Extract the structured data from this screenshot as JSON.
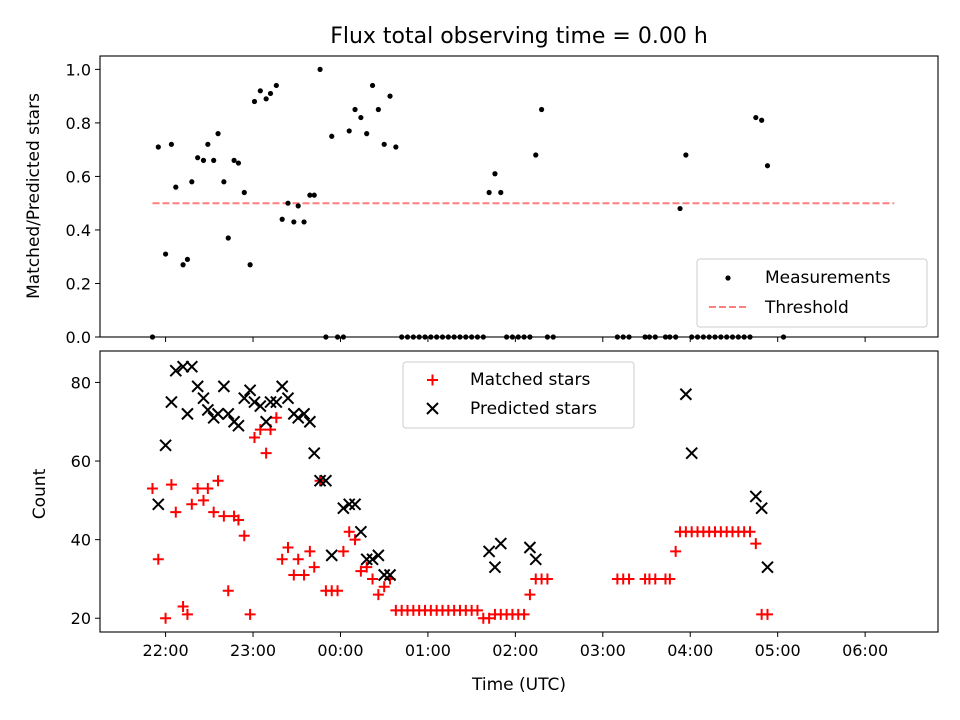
{
  "chart_data": [
    {
      "type": "scatter",
      "title": "Flux total observing time = 0.00 h",
      "xlabel": "",
      "ylabel": "Matched/Predicted stars",
      "xlim": [
        "21:15",
        "06:50"
      ],
      "ylim": [
        0,
        1.05
      ],
      "y_ticks": [
        "0.0",
        "0.2",
        "0.4",
        "0.6",
        "0.8",
        "1.0"
      ],
      "grid": false,
      "legend": "lower-right",
      "colors": {
        "measurements": "#000000",
        "threshold": "#ff7f7f"
      },
      "threshold": {
        "name": "Threshold",
        "y": 0.5,
        "x_range": [
          "21:51",
          "06:20"
        ]
      },
      "series": [
        {
          "name": "Measurements",
          "points": [
            [
              "21:51",
              0.0
            ],
            [
              "21:55",
              0.71
            ],
            [
              "22:00",
              0.31
            ],
            [
              "22:04",
              0.72
            ],
            [
              "22:07",
              0.56
            ],
            [
              "22:12",
              0.27
            ],
            [
              "22:15",
              0.29
            ],
            [
              "22:18",
              0.58
            ],
            [
              "22:22",
              0.67
            ],
            [
              "22:26",
              0.66
            ],
            [
              "22:29",
              0.72
            ],
            [
              "22:33",
              0.66
            ],
            [
              "22:36",
              0.76
            ],
            [
              "22:40",
              0.58
            ],
            [
              "22:43",
              0.37
            ],
            [
              "22:47",
              0.66
            ],
            [
              "22:50",
              0.65
            ],
            [
              "22:54",
              0.54
            ],
            [
              "22:58",
              0.27
            ],
            [
              "23:01",
              0.88
            ],
            [
              "23:05",
              0.92
            ],
            [
              "23:09",
              0.89
            ],
            [
              "23:12",
              0.91
            ],
            [
              "23:16",
              0.94
            ],
            [
              "23:20",
              0.44
            ],
            [
              "23:24",
              0.5
            ],
            [
              "23:28",
              0.43
            ],
            [
              "23:31",
              0.49
            ],
            [
              "23:35",
              0.43
            ],
            [
              "23:39",
              0.53
            ],
            [
              "23:42",
              0.53
            ],
            [
              "23:46",
              1.0
            ],
            [
              "23:50",
              0.0
            ],
            [
              "23:54",
              0.75
            ],
            [
              "23:58",
              0.0
            ],
            [
              "00:02",
              0.0
            ],
            [
              "00:06",
              0.77
            ],
            [
              "00:10",
              0.85
            ],
            [
              "00:14",
              0.82
            ],
            [
              "00:18",
              0.76
            ],
            [
              "00:22",
              0.94
            ],
            [
              "00:26",
              0.85
            ],
            [
              "00:30",
              0.72
            ],
            [
              "00:34",
              0.9
            ],
            [
              "00:38",
              0.71
            ],
            [
              "00:42",
              0.0
            ],
            [
              "00:46",
              0.0
            ],
            [
              "00:50",
              0.0
            ],
            [
              "00:54",
              0.0
            ],
            [
              "00:58",
              0.0
            ],
            [
              "01:02",
              0.0
            ],
            [
              "01:06",
              0.0
            ],
            [
              "01:10",
              0.0
            ],
            [
              "01:14",
              0.0
            ],
            [
              "01:18",
              0.0
            ],
            [
              "01:22",
              0.0
            ],
            [
              "01:26",
              0.0
            ],
            [
              "01:30",
              0.0
            ],
            [
              "01:34",
              0.0
            ],
            [
              "01:38",
              0.0
            ],
            [
              "01:42",
              0.54
            ],
            [
              "01:46",
              0.61
            ],
            [
              "01:50",
              0.54
            ],
            [
              "01:54",
              0.0
            ],
            [
              "01:58",
              0.0
            ],
            [
              "02:02",
              0.0
            ],
            [
              "02:06",
              0.0
            ],
            [
              "02:10",
              0.0
            ],
            [
              "02:14",
              0.68
            ],
            [
              "02:18",
              0.85
            ],
            [
              "02:22",
              0.0
            ],
            [
              "02:26",
              0.0
            ],
            [
              "03:10",
              0.0
            ],
            [
              "03:14",
              0.0
            ],
            [
              "03:18",
              0.0
            ],
            [
              "03:29",
              0.0
            ],
            [
              "03:32",
              0.0
            ],
            [
              "03:36",
              0.0
            ],
            [
              "03:43",
              0.0
            ],
            [
              "03:46",
              0.0
            ],
            [
              "03:50",
              0.0
            ],
            [
              "03:53",
              0.48
            ],
            [
              "03:57",
              0.68
            ],
            [
              "04:01",
              0.0
            ],
            [
              "04:05",
              0.0
            ],
            [
              "04:09",
              0.0
            ],
            [
              "04:13",
              0.0
            ],
            [
              "04:17",
              0.0
            ],
            [
              "04:21",
              0.0
            ],
            [
              "04:25",
              0.0
            ],
            [
              "04:29",
              0.0
            ],
            [
              "04:33",
              0.0
            ],
            [
              "04:37",
              0.0
            ],
            [
              "04:41",
              0.0
            ],
            [
              "04:45",
              0.82
            ],
            [
              "04:49",
              0.81
            ],
            [
              "04:53",
              0.64
            ],
            [
              "05:04",
              0.0
            ]
          ]
        }
      ]
    },
    {
      "type": "scatter",
      "title": "",
      "xlabel": "Time (UTC)",
      "ylabel": "Count",
      "xlim": [
        "21:15",
        "06:50"
      ],
      "x_ticks": [
        "22:00",
        "23:00",
        "00:00",
        "01:00",
        "02:00",
        "03:00",
        "04:00",
        "05:00",
        "06:00"
      ],
      "ylim": [
        16.5,
        88
      ],
      "y_ticks": [
        "20",
        "40",
        "60",
        "80"
      ],
      "grid": false,
      "legend": "upper-center",
      "colors": {
        "matched": "#ff0000",
        "predicted": "#000000"
      },
      "series": [
        {
          "name": "Matched stars",
          "points": [
            [
              "21:51",
              53
            ],
            [
              "21:55",
              35
            ],
            [
              "22:00",
              20
            ],
            [
              "22:04",
              54
            ],
            [
              "22:07",
              47
            ],
            [
              "22:12",
              23
            ],
            [
              "22:15",
              21
            ],
            [
              "22:18",
              49
            ],
            [
              "22:22",
              53
            ],
            [
              "22:26",
              50
            ],
            [
              "22:29",
              53
            ],
            [
              "22:33",
              47
            ],
            [
              "22:36",
              55
            ],
            [
              "22:40",
              46
            ],
            [
              "22:43",
              27
            ],
            [
              "22:47",
              46
            ],
            [
              "22:50",
              45
            ],
            [
              "22:54",
              41
            ],
            [
              "22:58",
              21
            ],
            [
              "23:01",
              66
            ],
            [
              "23:05",
              68
            ],
            [
              "23:09",
              62
            ],
            [
              "23:12",
              68
            ],
            [
              "23:16",
              71
            ],
            [
              "23:20",
              35
            ],
            [
              "23:24",
              38
            ],
            [
              "23:28",
              31
            ],
            [
              "23:31",
              35
            ],
            [
              "23:35",
              31
            ],
            [
              "23:39",
              37
            ],
            [
              "23:42",
              33
            ],
            [
              "23:46",
              55
            ],
            [
              "23:50",
              27
            ],
            [
              "23:54",
              27
            ],
            [
              "23:58",
              27
            ],
            [
              "00:02",
              37
            ],
            [
              "00:06",
              42
            ],
            [
              "00:10",
              40
            ],
            [
              "00:14",
              32
            ],
            [
              "00:18",
              33
            ],
            [
              "00:22",
              30
            ],
            [
              "00:26",
              26
            ],
            [
              "00:30",
              28
            ],
            [
              "00:34",
              30
            ],
            [
              "00:38",
              22
            ],
            [
              "00:42",
              22
            ],
            [
              "00:46",
              22
            ],
            [
              "00:50",
              22
            ],
            [
              "00:54",
              22
            ],
            [
              "00:58",
              22
            ],
            [
              "01:02",
              22
            ],
            [
              "01:06",
              22
            ],
            [
              "01:10",
              22
            ],
            [
              "01:14",
              22
            ],
            [
              "01:18",
              22
            ],
            [
              "01:22",
              22
            ],
            [
              "01:26",
              22
            ],
            [
              "01:30",
              22
            ],
            [
              "01:34",
              22
            ],
            [
              "01:38",
              20
            ],
            [
              "01:42",
              20
            ],
            [
              "01:46",
              21
            ],
            [
              "01:50",
              21
            ],
            [
              "01:54",
              21
            ],
            [
              "01:58",
              21
            ],
            [
              "02:02",
              21
            ],
            [
              "02:06",
              21
            ],
            [
              "02:10",
              26
            ],
            [
              "02:14",
              30
            ],
            [
              "02:18",
              30
            ],
            [
              "02:22",
              30
            ],
            [
              "03:10",
              30
            ],
            [
              "03:14",
              30
            ],
            [
              "03:18",
              30
            ],
            [
              "03:29",
              30
            ],
            [
              "03:32",
              30
            ],
            [
              "03:36",
              30
            ],
            [
              "03:43",
              30
            ],
            [
              "03:46",
              30
            ],
            [
              "03:50",
              37
            ],
            [
              "03:53",
              42
            ],
            [
              "03:57",
              42
            ],
            [
              "04:01",
              42
            ],
            [
              "04:05",
              42
            ],
            [
              "04:09",
              42
            ],
            [
              "04:13",
              42
            ],
            [
              "04:17",
              42
            ],
            [
              "04:21",
              42
            ],
            [
              "04:25",
              42
            ],
            [
              "04:29",
              42
            ],
            [
              "04:33",
              42
            ],
            [
              "04:37",
              42
            ],
            [
              "04:41",
              42
            ],
            [
              "04:45",
              39
            ],
            [
              "04:49",
              21
            ],
            [
              "04:53",
              21
            ]
          ]
        },
        {
          "name": "Predicted stars",
          "points": [
            [
              "21:55",
              49
            ],
            [
              "22:00",
              64
            ],
            [
              "22:04",
              75
            ],
            [
              "22:07",
              83
            ],
            [
              "22:12",
              84
            ],
            [
              "22:15",
              72
            ],
            [
              "22:18",
              84
            ],
            [
              "22:22",
              79
            ],
            [
              "22:26",
              76
            ],
            [
              "22:29",
              73
            ],
            [
              "22:33",
              71
            ],
            [
              "22:36",
              72
            ],
            [
              "22:40",
              79
            ],
            [
              "22:43",
              72
            ],
            [
              "22:47",
              70
            ],
            [
              "22:50",
              69
            ],
            [
              "22:54",
              76
            ],
            [
              "22:58",
              78
            ],
            [
              "23:01",
              75
            ],
            [
              "23:05",
              74
            ],
            [
              "23:09",
              70
            ],
            [
              "23:12",
              75
            ],
            [
              "23:16",
              75
            ],
            [
              "23:20",
              79
            ],
            [
              "23:24",
              76
            ],
            [
              "23:28",
              72
            ],
            [
              "23:31",
              71
            ],
            [
              "23:35",
              72
            ],
            [
              "23:39",
              70
            ],
            [
              "23:42",
              62
            ],
            [
              "23:46",
              55
            ],
            [
              "23:50",
              55
            ],
            [
              "23:54",
              36
            ],
            [
              "00:02",
              48
            ],
            [
              "00:06",
              49
            ],
            [
              "00:10",
              49
            ],
            [
              "00:14",
              42
            ],
            [
              "00:18",
              35
            ],
            [
              "00:22",
              35
            ],
            [
              "00:26",
              36
            ],
            [
              "00:30",
              31
            ],
            [
              "00:34",
              31
            ],
            [
              "01:42",
              37
            ],
            [
              "01:46",
              33
            ],
            [
              "01:50",
              39
            ],
            [
              "02:10",
              38
            ],
            [
              "02:14",
              35
            ],
            [
              "03:57",
              77
            ],
            [
              "04:01",
              62
            ],
            [
              "04:45",
              51
            ],
            [
              "04:49",
              48
            ],
            [
              "04:53",
              33
            ]
          ]
        }
      ]
    }
  ]
}
